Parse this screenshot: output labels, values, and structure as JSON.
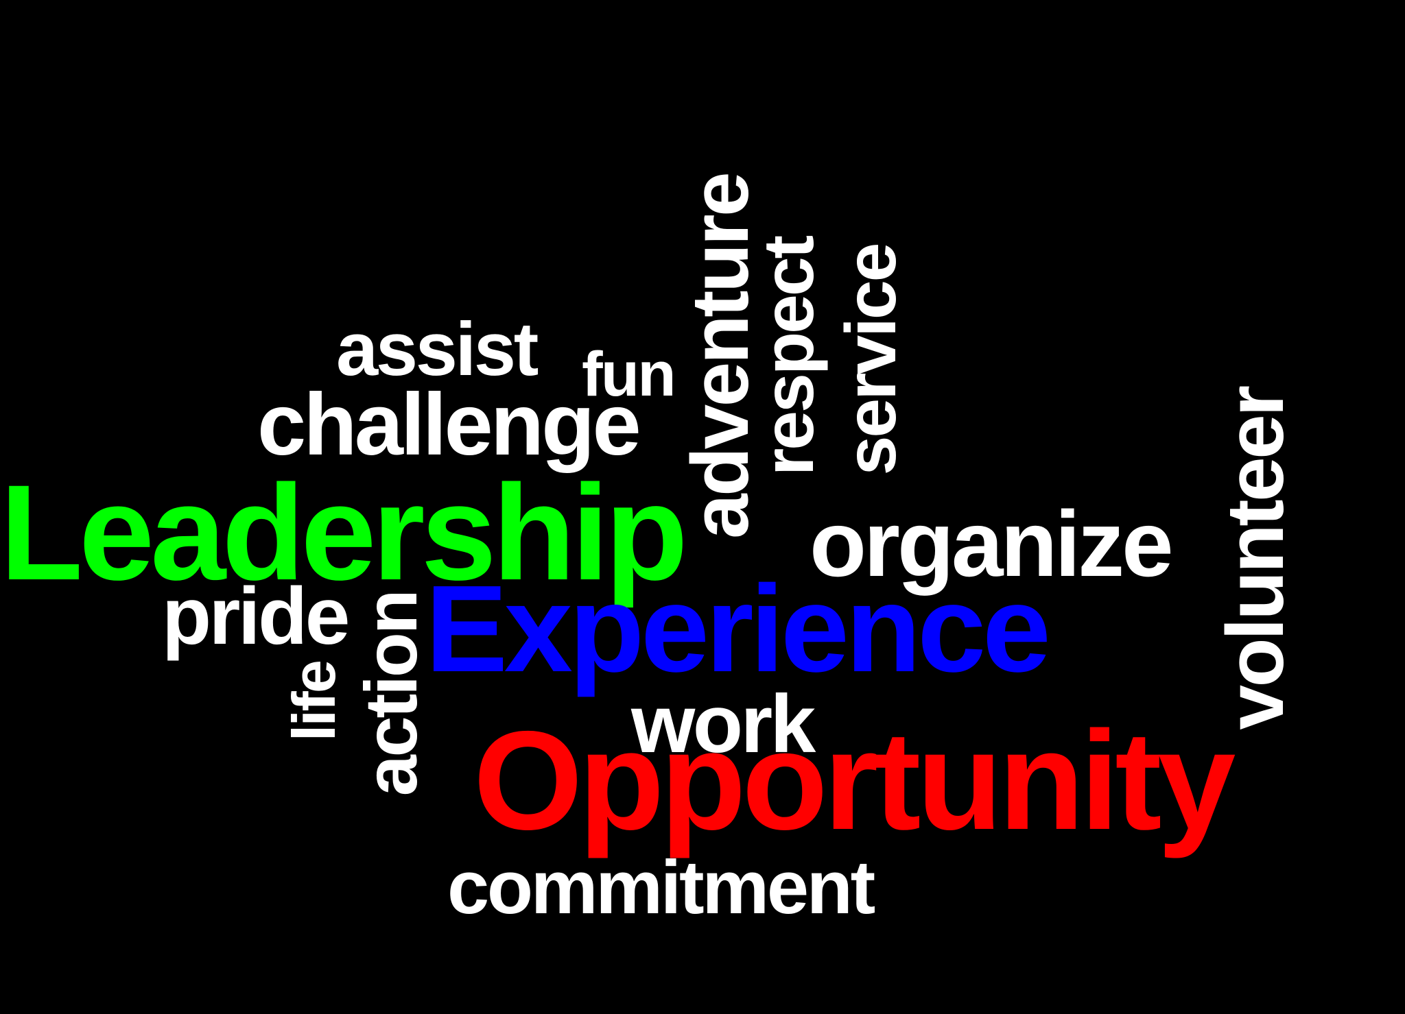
{
  "background_color": "#000000",
  "words": [
    {
      "id": "leadership",
      "text": "Leadership",
      "color": "#00ff00"
    },
    {
      "id": "experience",
      "text": "Experience",
      "color": "#0000ff"
    },
    {
      "id": "opportunity",
      "text": "Opportunity",
      "color": "#ff0000"
    },
    {
      "id": "organize",
      "text": "organize",
      "color": "#ffffff"
    },
    {
      "id": "volunteer",
      "text": "volunteer",
      "color": "#ffffff"
    },
    {
      "id": "adventure",
      "text": "adventure",
      "color": "#ffffff"
    },
    {
      "id": "respect",
      "text": "respect",
      "color": "#ffffff"
    },
    {
      "id": "service",
      "text": "service",
      "color": "#ffffff"
    },
    {
      "id": "challenge",
      "text": "challenge",
      "color": "#ffffff"
    },
    {
      "id": "assist",
      "text": "assist",
      "color": "#ffffff"
    },
    {
      "id": "fun",
      "text": "fun",
      "color": "#ffffff"
    },
    {
      "id": "pride",
      "text": "pride",
      "color": "#ffffff"
    },
    {
      "id": "action",
      "text": "action",
      "color": "#ffffff"
    },
    {
      "id": "life",
      "text": "life",
      "color": "#ffffff"
    },
    {
      "id": "work",
      "text": "work",
      "color": "#ffffff"
    },
    {
      "id": "commitment",
      "text": "commitment",
      "color": "#ffffff"
    }
  ]
}
